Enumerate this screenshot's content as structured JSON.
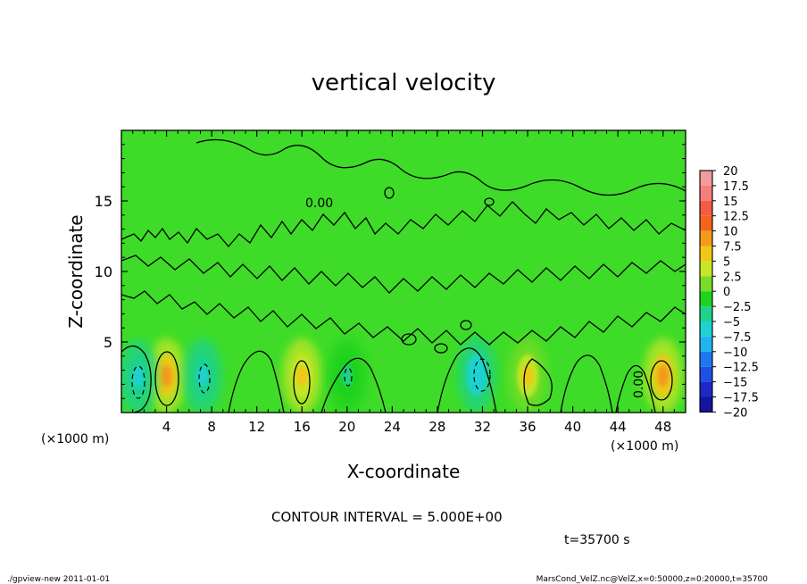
{
  "chart_data": {
    "type": "heatmap",
    "title": "vertical velocity",
    "xlabel": "X-coordinate",
    "ylabel": "Z-coordinate",
    "x_unit": "(×1000 m)",
    "x_unit_right": "(×1000 m)",
    "xlim": [
      0,
      50
    ],
    "ylim": [
      0,
      20
    ],
    "x_ticks": [
      4,
      8,
      12,
      16,
      20,
      24,
      28,
      32,
      36,
      40,
      44,
      48
    ],
    "y_ticks": [
      5,
      10,
      15
    ],
    "contour_interval_text": "CONTOUR INTERVAL = 5.000E+00",
    "time_text": "t=35700 s",
    "contour_labels": [
      {
        "text": "0.00",
        "x": 17.5,
        "z": 15.0
      },
      {
        "text": "0.00",
        "x": 46.0,
        "z": 2.2
      }
    ],
    "colorbar": {
      "levels": [
        "20",
        "17.5",
        "15",
        "12.5",
        "10",
        "7.5",
        "5",
        "2.5",
        "0",
        "-2.5",
        "-5",
        "-7.5",
        "-10",
        "-12.5",
        "-15",
        "-17.5",
        "-20"
      ],
      "colors": [
        "#f59a9a",
        "#f77d7d",
        "#f45a45",
        "#f4641a",
        "#f49a1a",
        "#f0c814",
        "#c8e628",
        "#78dc28",
        "#1ed21e",
        "#1ed28c",
        "#1ed2d2",
        "#1eb4f0",
        "#1e78f0",
        "#1e50e6",
        "#1e28c8",
        "#1414a0",
        "#5014a0"
      ]
    },
    "features": [
      {
        "kind": "updraft",
        "x": 4.0,
        "z": 2.6,
        "peak": 9.0
      },
      {
        "kind": "updraft",
        "x": 16.0,
        "z": 2.6,
        "peak": 6.0
      },
      {
        "kind": "updraft",
        "x": 48.0,
        "z": 2.6,
        "peak": 8.0
      },
      {
        "kind": "updraft",
        "x": 36.0,
        "z": 2.6,
        "peak": 5.5
      },
      {
        "kind": "downdraft",
        "x": 1.5,
        "z": 2.5,
        "peak": -5.0
      },
      {
        "kind": "downdraft",
        "x": 7.2,
        "z": 2.6,
        "peak": -5.0
      },
      {
        "kind": "downdraft",
        "x": 31.5,
        "z": 2.7,
        "peak": -7.0
      },
      {
        "kind": "downdraft",
        "x": 20.0,
        "z": 2.6,
        "peak": -3.0
      }
    ]
  },
  "footer": {
    "left": "./gpview-new  2011-01-01",
    "right": "MarsCond_VelZ.nc@VelZ,x=0:50000,z=0:20000,t=35700"
  }
}
